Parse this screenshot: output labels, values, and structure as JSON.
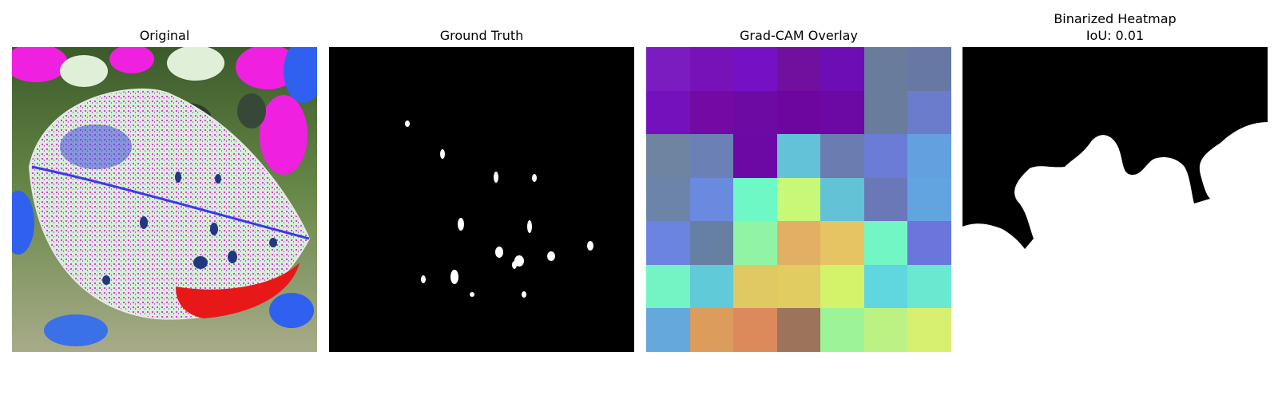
{
  "panels": {
    "original": {
      "title": "Original"
    },
    "ground_truth": {
      "title": "Ground Truth"
    },
    "gradcam": {
      "title": "Grad-CAM Overlay",
      "grid": [
        [
          "#7a1cc0",
          "#7712b8",
          "#7610c4",
          "#71109e",
          "#6d0eb4",
          "#6a7c9c",
          "#6878a4"
        ],
        [
          "#7410bc",
          "#730aa4",
          "#6e0aa4",
          "#6c069e",
          "#6c08a4",
          "#6a7c9c",
          "#6b7ccc"
        ],
        [
          "#6e84a0",
          "#6b80b4",
          "#6c08a4",
          "#62c2d8",
          "#6a7cb0",
          "#6a7cd6",
          "#62a0e0"
        ],
        [
          "#6b84a8",
          "#6a8ae0",
          "#6ef8c6",
          "#c8f878",
          "#62c2d6",
          "#6a78b8",
          "#62a4e0"
        ],
        [
          "#6a84e0",
          "#6680a4",
          "#90f4a4",
          "#e2b064",
          "#e6c464",
          "#72f6c4",
          "#6a76dc"
        ],
        [
          "#74f4c4",
          "#60cad8",
          "#e0c862",
          "#e0cc60",
          "#d4f26a",
          "#60d6de",
          "#6ae8d0"
        ],
        [
          "#64a8dc",
          "#dc9c5c",
          "#dc8a5c",
          "#9c745c",
          "#9cf496",
          "#bcf284",
          "#d8f070"
        ]
      ]
    },
    "binarized": {
      "title_line1": "Binarized Heatmap",
      "title_line2": "IoU: 0.01"
    }
  }
}
